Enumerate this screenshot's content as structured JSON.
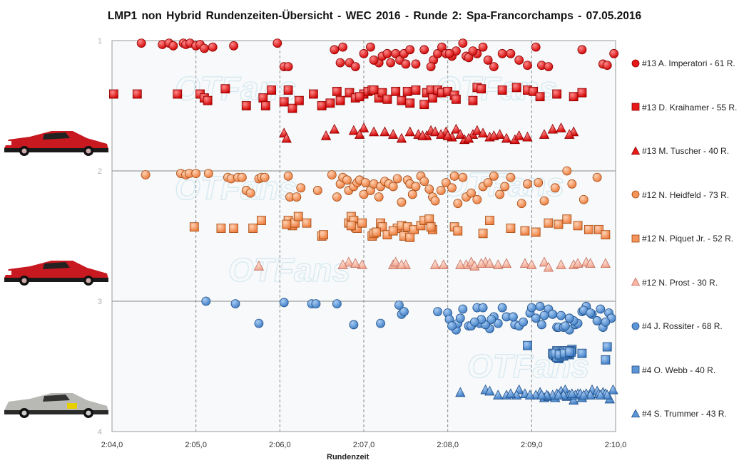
{
  "title": "LMP1  non Hybrid Rundenzeiten-Übersicht  - WEC 2016  - Runde 2: Spa-Francorchamps  - 07.05.2016",
  "watermark": "OTFans",
  "chart_data": {
    "type": "scatter",
    "title": "LMP1  non Hybrid Rundenzeiten-Übersicht  - WEC 2016  - Runde 2: Spa-Francorchamps  - 07.05.2016",
    "xlabel": "Rundenzeit",
    "ylabel": "",
    "x_unit": "seconds",
    "xlim": [
      124.0,
      130.0
    ],
    "ylim": [
      1,
      4
    ],
    "y_inverted": true,
    "x_tick_labels": [
      "2:04,0",
      "2:05,0",
      "2:06,0",
      "2:07,0",
      "2:08,0",
      "2:09,0",
      "2:10,0"
    ],
    "y_tick_labels": [
      "1",
      "2",
      "3",
      "4"
    ],
    "grid": true,
    "legend_position": "right",
    "series": [
      {
        "name": "#13 A. Imperatori - 61 R.",
        "marker": "circle",
        "color": "#e81818",
        "stroke": "#8c0000",
        "x": [
          124.35,
          124.6,
          124.68,
          124.73,
          124.85,
          124.88,
          124.93,
          125.0,
          125.05,
          125.2,
          125.45,
          125.97,
          126.05,
          126.1,
          126.65,
          126.75,
          126.83,
          126.9,
          127.0,
          127.08,
          127.18,
          127.22,
          127.28,
          127.32,
          127.38,
          127.43,
          127.48,
          127.55,
          127.62,
          127.72,
          127.83,
          127.88,
          127.93,
          127.98,
          128.05,
          128.1,
          128.18,
          128.22,
          128.25,
          128.35,
          128.42,
          128.48,
          128.55,
          128.65,
          128.75,
          128.85,
          128.95,
          129.05,
          129.12,
          129.6,
          129.85,
          129.9,
          129.98,
          126.72,
          127.12,
          127.5,
          127.8,
          128.02,
          128.3,
          129.2,
          125.1
        ],
        "y": [
          1.02,
          1.03,
          1.02,
          1.04,
          1.02,
          1.03,
          1.02,
          1.04,
          1.03,
          1.05,
          1.04,
          1.02,
          1.2,
          1.2,
          1.07,
          1.05,
          1.17,
          1.2,
          1.1,
          1.05,
          1.17,
          1.12,
          1.1,
          1.17,
          1.1,
          1.15,
          1.1,
          1.07,
          1.18,
          1.07,
          1.15,
          1.1,
          1.05,
          1.1,
          1.12,
          1.08,
          1.02,
          1.12,
          1.13,
          1.1,
          1.05,
          1.15,
          1.2,
          1.1,
          1.1,
          1.15,
          1.19,
          1.05,
          1.19,
          1.07,
          1.18,
          1.19,
          1.1,
          1.17,
          1.15,
          1.18,
          1.2,
          1.1,
          1.08,
          1.2,
          1.06
        ]
      },
      {
        "name": "#13 D. Kraihamer - 55 R.",
        "marker": "square",
        "color": "#e81818",
        "stroke": "#8c0000",
        "x": [
          124.02,
          124.3,
          124.78,
          125.05,
          125.1,
          125.14,
          125.35,
          125.6,
          125.8,
          125.83,
          125.9,
          126.05,
          126.1,
          126.15,
          126.23,
          126.5,
          126.6,
          126.68,
          126.72,
          126.83,
          126.9,
          127.0,
          127.05,
          127.1,
          127.12,
          127.18,
          127.22,
          127.28,
          127.38,
          127.45,
          127.52,
          127.62,
          127.72,
          127.75,
          127.8,
          127.82,
          127.88,
          127.93,
          128.0,
          128.08,
          128.1,
          128.3,
          128.35,
          128.65,
          128.82,
          128.95,
          129.02,
          129.1,
          129.3,
          129.5,
          129.6,
          126.95,
          127.55,
          128.4,
          126.4
        ],
        "y": [
          1.41,
          1.41,
          1.41,
          1.41,
          1.44,
          1.46,
          1.37,
          1.5,
          1.44,
          1.5,
          1.38,
          1.47,
          1.38,
          1.52,
          1.46,
          1.5,
          1.48,
          1.39,
          1.46,
          1.4,
          1.44,
          1.41,
          1.39,
          1.38,
          1.38,
          1.44,
          1.4,
          1.45,
          1.39,
          1.46,
          1.39,
          1.38,
          1.49,
          1.4,
          1.38,
          1.44,
          1.38,
          1.4,
          1.39,
          1.42,
          1.45,
          1.46,
          1.36,
          1.38,
          1.36,
          1.38,
          1.39,
          1.43,
          1.41,
          1.43,
          1.4,
          1.43,
          1.48,
          1.37,
          1.41
        ]
      },
      {
        "name": "#13 M. Tuscher - 40 R.",
        "marker": "triangle",
        "color": "#e81818",
        "stroke": "#8c0000",
        "x": [
          126.05,
          126.08,
          126.65,
          126.88,
          127.0,
          127.12,
          127.25,
          127.45,
          127.55,
          127.75,
          127.8,
          127.85,
          127.98,
          128.05,
          128.1,
          128.2,
          128.3,
          128.35,
          128.42,
          128.5,
          128.62,
          128.8,
          128.95,
          129.25,
          129.35,
          129.5,
          127.92,
          128.15,
          128.7,
          128.25,
          126.95,
          127.65,
          128.55,
          129.45,
          128.0,
          127.7,
          126.55,
          127.35,
          128.85,
          129.15
        ],
        "y": [
          1.71,
          1.75,
          1.68,
          1.69,
          1.67,
          1.7,
          1.7,
          1.75,
          1.7,
          1.73,
          1.69,
          1.7,
          1.7,
          1.74,
          1.68,
          1.76,
          1.72,
          1.69,
          1.71,
          1.74,
          1.72,
          1.76,
          1.74,
          1.68,
          1.67,
          1.7,
          1.72,
          1.72,
          1.75,
          1.75,
          1.72,
          1.72,
          1.73,
          1.72,
          1.73,
          1.73,
          1.73,
          1.72,
          1.73,
          1.72
        ]
      },
      {
        "name": "#12 N. Heidfeld - 73 R.",
        "marker": "circle",
        "color": "#f4935a",
        "stroke": "#a04810",
        "x": [
          124.4,
          124.82,
          124.88,
          124.92,
          125.0,
          125.15,
          125.38,
          125.42,
          125.5,
          125.55,
          125.6,
          125.65,
          125.75,
          125.78,
          125.82,
          126.1,
          126.12,
          126.2,
          126.25,
          126.45,
          126.62,
          126.68,
          126.72,
          126.75,
          126.8,
          126.82,
          126.88,
          126.92,
          126.95,
          127.0,
          127.02,
          127.08,
          127.12,
          127.18,
          127.2,
          127.25,
          127.3,
          127.35,
          127.4,
          127.45,
          127.52,
          127.55,
          127.58,
          127.62,
          127.68,
          127.72,
          127.78,
          127.82,
          127.85,
          127.92,
          127.98,
          128.05,
          128.08,
          128.12,
          128.18,
          128.22,
          128.28,
          128.35,
          128.42,
          128.48,
          128.55,
          128.62,
          128.68,
          128.75,
          128.88,
          128.95,
          129.08,
          129.15,
          129.28,
          129.42,
          129.48,
          129.62,
          129.78
        ],
        "y": [
          2.03,
          2.02,
          2.03,
          2.02,
          2.02,
          2.02,
          2.05,
          2.06,
          2.05,
          2.05,
          2.15,
          2.17,
          2.06,
          2.05,
          2.05,
          2.04,
          2.2,
          2.2,
          2.13,
          2.15,
          2.03,
          2.2,
          2.1,
          2.05,
          2.07,
          2.15,
          2.12,
          2.09,
          2.07,
          2.18,
          2.09,
          2.15,
          2.1,
          2.2,
          2.12,
          2.08,
          2.1,
          2.12,
          2.06,
          2.24,
          2.07,
          2.1,
          2.18,
          2.12,
          2.04,
          2.08,
          2.14,
          2.2,
          2.23,
          2.15,
          2.09,
          2.13,
          2.04,
          2.25,
          2.05,
          2.2,
          2.17,
          2.22,
          2.12,
          2.09,
          2.04,
          2.18,
          2.12,
          2.05,
          2.25,
          2.1,
          2.09,
          2.23,
          2.13,
          2.0,
          2.1,
          2.22,
          2.05
        ]
      },
      {
        "name": "#12 N. Piquet Jr. - 52 R.",
        "marker": "square",
        "color": "#f4935a",
        "stroke": "#a04810",
        "x": [
          124.98,
          125.3,
          125.45,
          125.68,
          125.78,
          126.1,
          126.15,
          126.18,
          126.22,
          126.32,
          126.5,
          126.52,
          126.82,
          126.85,
          126.88,
          126.9,
          126.92,
          127.1,
          127.12,
          127.2,
          127.22,
          127.28,
          127.4,
          127.45,
          127.48,
          127.52,
          127.55,
          127.6,
          127.68,
          127.72,
          127.78,
          127.82,
          128.08,
          128.5,
          128.75,
          128.92,
          129.2,
          129.32,
          129.42,
          129.55,
          129.68,
          129.8,
          129.88,
          126.98,
          127.35,
          127.8,
          128.42,
          129.05,
          126.08,
          127.15,
          128.12,
          126.85
        ],
        "y": [
          2.43,
          2.44,
          2.44,
          2.44,
          2.38,
          2.38,
          2.42,
          2.4,
          2.35,
          2.4,
          2.5,
          2.49,
          2.4,
          2.35,
          2.38,
          2.43,
          2.44,
          2.5,
          2.48,
          2.4,
          2.43,
          2.49,
          2.44,
          2.42,
          2.5,
          2.43,
          2.51,
          2.45,
          2.42,
          2.38,
          2.37,
          2.45,
          2.43,
          2.38,
          2.44,
          2.46,
          2.4,
          2.41,
          2.37,
          2.42,
          2.45,
          2.45,
          2.49,
          2.4,
          2.46,
          2.43,
          2.48,
          2.47,
          2.41,
          2.47,
          2.46,
          2.42
        ]
      },
      {
        "name": "#12 N. Prost - 30 R.",
        "marker": "triangle",
        "color": "#f8b4a0",
        "stroke": "#c07060",
        "x": [
          125.75,
          126.82,
          126.98,
          127.35,
          127.38,
          127.5,
          128.22,
          128.28,
          128.32,
          128.45,
          128.5,
          128.92,
          129.15,
          129.2,
          129.5,
          129.65,
          129.7,
          129.88,
          128.6,
          127.85,
          126.9,
          127.95,
          128.4,
          129.35,
          127.45,
          128.15,
          129.0,
          129.55,
          126.75,
          128.7
        ],
        "y": [
          2.73,
          2.7,
          2.72,
          2.72,
          2.7,
          2.72,
          2.72,
          2.7,
          2.73,
          2.7,
          2.71,
          2.71,
          2.7,
          2.74,
          2.72,
          2.7,
          2.71,
          2.71,
          2.72,
          2.72,
          2.71,
          2.72,
          2.71,
          2.72,
          2.72,
          2.72,
          2.72,
          2.71,
          2.72,
          2.71
        ]
      },
      {
        "name": "#4 J. Rossiter - 68 R.",
        "marker": "circle",
        "color": "#5c96d6",
        "stroke": "#1f4e86",
        "x": [
          125.12,
          125.47,
          125.75,
          126.05,
          126.38,
          126.43,
          126.68,
          126.88,
          127.2,
          127.42,
          127.45,
          127.48,
          128.0,
          128.08,
          128.1,
          128.18,
          128.25,
          128.35,
          128.38,
          128.42,
          128.5,
          128.65,
          128.8,
          128.85,
          128.98,
          129.1,
          129.2,
          129.3,
          129.32,
          129.38,
          129.45,
          129.52,
          129.6,
          129.65,
          129.72,
          129.82,
          129.85,
          129.92,
          129.95,
          128.12,
          128.45,
          129.0,
          129.4,
          129.62,
          128.28,
          127.88,
          128.55,
          128.9,
          129.25,
          129.78,
          128.02,
          128.6,
          129.15,
          129.55,
          129.7,
          128.15,
          128.4,
          128.7,
          129.05,
          129.35,
          129.5,
          128.32,
          128.78,
          129.12,
          129.45,
          129.88,
          128.05,
          128.52
        ],
        "y": [
          3.0,
          3.02,
          3.17,
          3.01,
          3.02,
          3.02,
          3.02,
          3.18,
          3.17,
          3.03,
          3.1,
          3.08,
          3.09,
          3.2,
          3.22,
          3.06,
          3.19,
          3.05,
          3.17,
          3.05,
          3.21,
          3.05,
          3.18,
          3.19,
          3.09,
          3.04,
          3.06,
          3.2,
          3.2,
          3.2,
          3.22,
          3.18,
          3.08,
          3.04,
          3.1,
          3.06,
          3.2,
          3.09,
          3.13,
          3.17,
          3.18,
          3.05,
          3.19,
          3.07,
          3.19,
          3.08,
          3.12,
          3.16,
          3.1,
          3.15,
          3.14,
          3.17,
          3.11,
          3.17,
          3.09,
          3.13,
          3.14,
          3.12,
          3.13,
          3.11,
          3.15,
          3.16,
          3.12,
          3.18,
          3.13,
          3.16,
          3.19,
          3.14
        ]
      },
      {
        "name": "#4 O. Webb - 40 R.",
        "marker": "square",
        "color": "#5c96d6",
        "stroke": "#1f4e86",
        "x": [
          128.95,
          129.25,
          129.28,
          129.3,
          129.32,
          129.35,
          129.38,
          129.4,
          129.42,
          129.45,
          129.48,
          129.6,
          129.9,
          129.88,
          129.27,
          129.33,
          129.36,
          129.43,
          129.31,
          129.39,
          129.46,
          129.29,
          129.37,
          129.41,
          129.34,
          129.44,
          129.26,
          129.32,
          129.38,
          129.42,
          129.3,
          129.4,
          129.47,
          129.35,
          129.28,
          129.36,
          129.43,
          129.33,
          129.39,
          129.45
        ],
        "y": [
          3.34,
          3.4,
          3.42,
          3.38,
          3.44,
          3.4,
          3.42,
          3.38,
          3.39,
          3.41,
          3.37,
          3.4,
          3.35,
          3.45,
          3.41,
          3.43,
          3.39,
          3.4,
          3.39,
          3.41,
          3.38,
          3.42,
          3.4,
          3.41,
          3.4,
          3.39,
          3.41,
          3.42,
          3.39,
          3.4,
          3.43,
          3.4,
          3.39,
          3.41,
          3.4,
          3.42,
          3.38,
          3.41,
          3.4,
          3.39
        ]
      },
      {
        "name": "#4 S. Trummer - 43 R.",
        "marker": "triangle",
        "color": "#5c96d6",
        "stroke": "#1f4e86",
        "x": [
          128.15,
          128.45,
          128.5,
          128.7,
          128.85,
          128.92,
          129.1,
          129.15,
          129.2,
          129.28,
          129.3,
          129.35,
          129.4,
          129.42,
          129.5,
          129.55,
          129.6,
          129.72,
          129.78,
          129.85,
          129.93,
          129.97,
          129.25,
          129.45,
          129.65,
          129.88,
          128.82,
          129.05,
          129.38,
          129.52,
          129.8,
          128.6,
          129.18,
          129.48,
          129.7,
          129.9,
          128.75,
          129.32,
          129.58,
          128.98,
          129.62,
          129.12,
          129.82
        ],
        "y": [
          3.7,
          3.68,
          3.69,
          3.72,
          3.68,
          3.71,
          3.7,
          3.74,
          3.73,
          3.74,
          3.71,
          3.69,
          3.68,
          3.73,
          3.76,
          3.71,
          3.74,
          3.68,
          3.69,
          3.7,
          3.75,
          3.68,
          3.72,
          3.72,
          3.71,
          3.71,
          3.72,
          3.72,
          3.72,
          3.72,
          3.71,
          3.72,
          3.72,
          3.71,
          3.72,
          3.72,
          3.71,
          3.72,
          3.71,
          3.72,
          3.72,
          3.72,
          3.72
        ]
      }
    ]
  }
}
